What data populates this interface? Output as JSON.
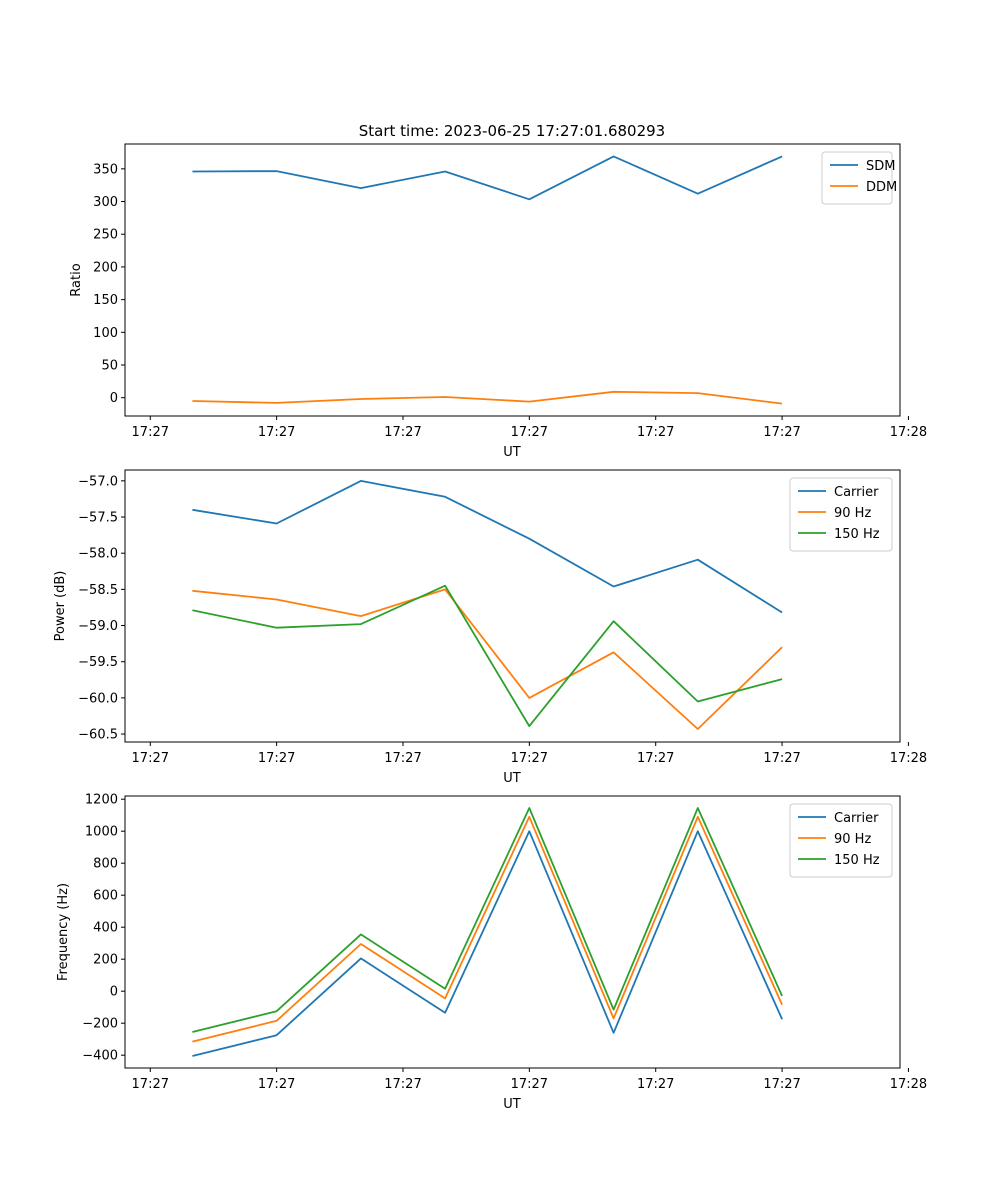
{
  "chart_data": [
    {
      "type": "line",
      "title": "Start time: 2023-06-25 17:27:01.680293",
      "xlabel": "UT",
      "ylabel": "Ratio",
      "x": [
        1,
        2,
        3,
        4,
        5,
        6,
        7,
        8
      ],
      "xlim": [
        0.2,
        9.4
      ],
      "x_ticks": [
        0.5,
        2,
        3.5,
        5,
        6.5,
        8,
        9.5
      ],
      "x_tick_labels": [
        "17:27",
        "17:27",
        "17:27",
        "17:27",
        "17:27",
        "17:27",
        "17:28"
      ],
      "ylim": [
        -28,
        388
      ],
      "y_ticks": [
        0,
        50,
        100,
        150,
        200,
        250,
        300,
        350
      ],
      "y_tick_labels": [
        "0",
        "50",
        "100",
        "150",
        "200",
        "250",
        "300",
        "350"
      ],
      "legend_position": "top-right",
      "series": [
        {
          "name": "SDM",
          "color": "#1f77b4",
          "values": [
            346,
            346.5,
            320.5,
            346,
            303.5,
            369,
            312,
            369
          ]
        },
        {
          "name": "DDM",
          "color": "#ff7f0e",
          "values": [
            -5,
            -8,
            -2,
            1,
            -6,
            9,
            7,
            -9
          ]
        }
      ]
    },
    {
      "type": "line",
      "title": "",
      "xlabel": "UT",
      "ylabel": "Power (dB)",
      "x": [
        1,
        2,
        3,
        4,
        5,
        6,
        7,
        8
      ],
      "xlim": [
        0.2,
        9.4
      ],
      "x_ticks": [
        0.5,
        2,
        3.5,
        5,
        6.5,
        8,
        9.5
      ],
      "x_tick_labels": [
        "17:27",
        "17:27",
        "17:27",
        "17:27",
        "17:27",
        "17:27",
        "17:28"
      ],
      "ylim": [
        -60.61,
        -56.85
      ],
      "y_ticks": [
        -60.5,
        -60.0,
        -59.5,
        -59.0,
        -58.5,
        -58.0,
        -57.5,
        -57.0
      ],
      "y_tick_labels": [
        "−60.5",
        "−60.0",
        "−59.5",
        "−59.0",
        "−58.5",
        "−58.0",
        "−57.5",
        "−57.0"
      ],
      "legend_position": "top-right",
      "series": [
        {
          "name": "Carrier",
          "color": "#1f77b4",
          "values": [
            -57.4,
            -57.59,
            -57.0,
            -57.22,
            -57.8,
            -58.46,
            -58.09,
            -58.82
          ]
        },
        {
          "name": "90 Hz",
          "color": "#ff7f0e",
          "values": [
            -58.52,
            -58.64,
            -58.87,
            -58.5,
            -60.0,
            -59.37,
            -60.43,
            -59.3
          ]
        },
        {
          "name": "150 Hz",
          "color": "#2ca02c",
          "values": [
            -58.79,
            -59.03,
            -58.98,
            -58.45,
            -60.39,
            -58.94,
            -60.05,
            -59.74
          ]
        }
      ]
    },
    {
      "type": "line",
      "title": "",
      "xlabel": "UT",
      "ylabel": "Frequency (Hz)",
      "x": [
        1,
        2,
        3,
        4,
        5,
        6,
        7,
        8
      ],
      "xlim": [
        0.2,
        9.4
      ],
      "x_ticks": [
        0.5,
        2,
        3.5,
        5,
        6.5,
        8,
        9.5
      ],
      "x_tick_labels": [
        "17:27",
        "17:27",
        "17:27",
        "17:27",
        "17:27",
        "17:27",
        "17:28"
      ],
      "ylim": [
        -480,
        1220
      ],
      "y_ticks": [
        -400,
        -200,
        0,
        200,
        400,
        600,
        800,
        1000,
        1200
      ],
      "y_tick_labels": [
        "−400",
        "−200",
        "0",
        "200",
        "400",
        "600",
        "800",
        "1000",
        "1200"
      ],
      "legend_position": "top-right",
      "series": [
        {
          "name": "Carrier",
          "color": "#1f77b4",
          "values": [
            -405,
            -275,
            205,
            -135,
            1000,
            -260,
            1000,
            -175
          ]
        },
        {
          "name": "90 Hz",
          "color": "#ff7f0e",
          "values": [
            -315,
            -185,
            295,
            -45,
            1090,
            -170,
            1090,
            -85
          ]
        },
        {
          "name": "150 Hz",
          "color": "#2ca02c",
          "values": [
            -255,
            -125,
            355,
            15,
            1145,
            -115,
            1145,
            -30
          ]
        }
      ]
    }
  ]
}
